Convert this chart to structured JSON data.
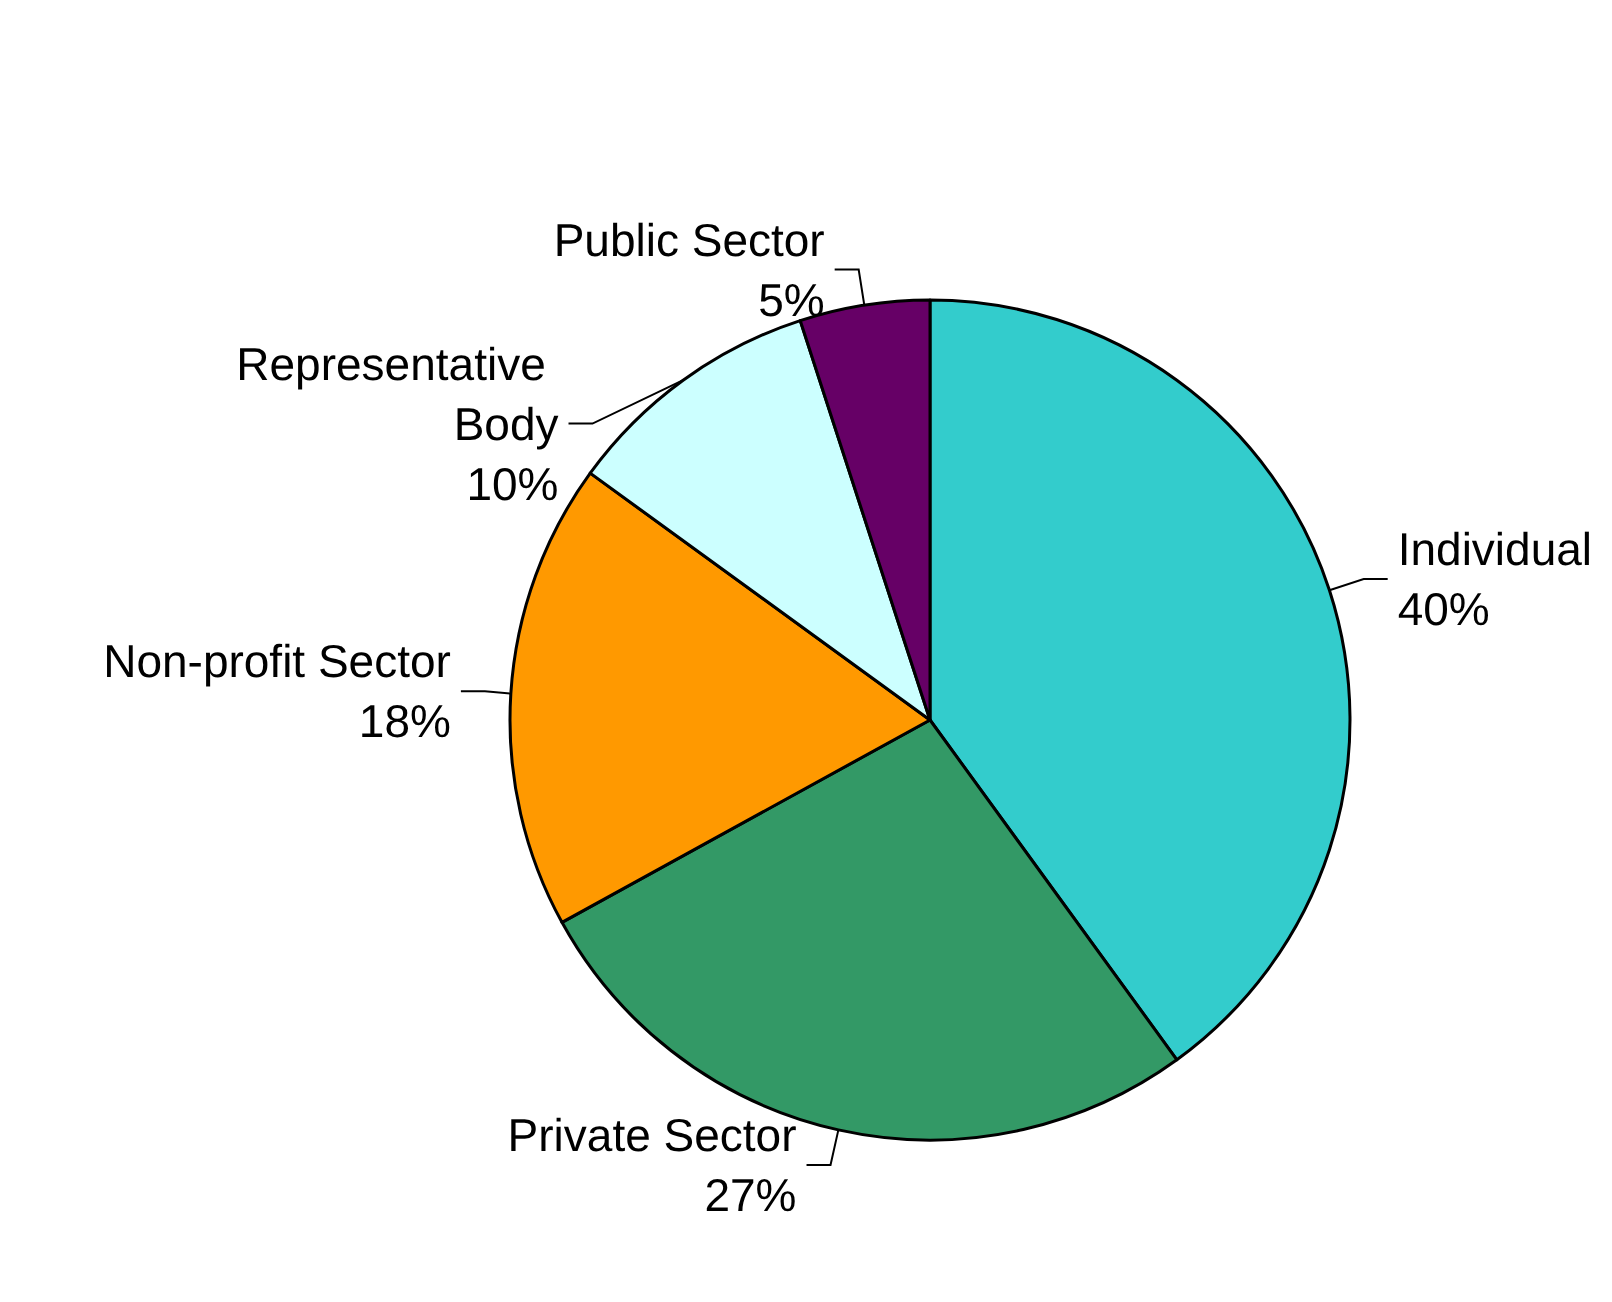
{
  "chart_data": {
    "type": "pie",
    "categories": [
      "Individual",
      "Private Sector",
      "Non-profit Sector",
      "Representative Body",
      "Public Sector"
    ],
    "values": [
      40,
      27,
      18,
      10,
      5
    ],
    "value_labels": [
      "40%",
      "27%",
      "18%",
      "10%",
      "5%"
    ],
    "colors": [
      "#33cccc",
      "#339966",
      "#ff9900",
      "#ccffff",
      "#660066"
    ]
  }
}
